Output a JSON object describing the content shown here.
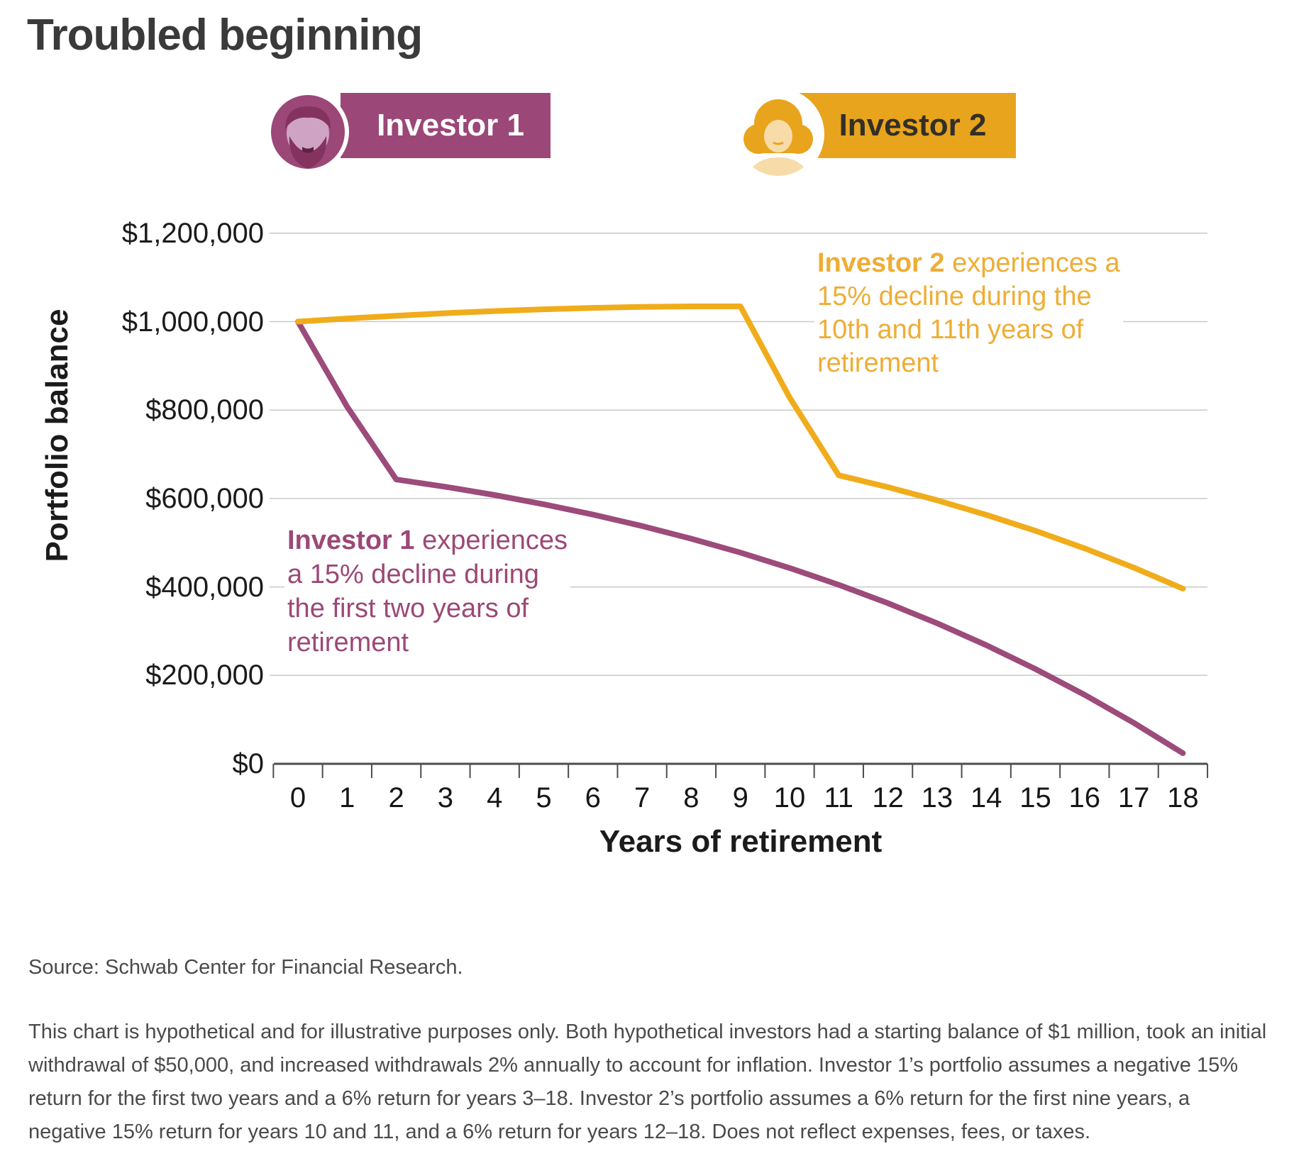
{
  "title": "Troubled beginning",
  "legend": {
    "investor1_label": "Investor 1",
    "investor2_label": "Investor 2"
  },
  "colors": {
    "purple": "#9B4778",
    "purple_line": "#9C4B7B",
    "purple_face": "#CFA3C4",
    "purple_dark": "#84335F",
    "gold": "#E8A41C",
    "gold_line": "#F0AC1A",
    "gold_face": "#F7DCA9",
    "gold_text": "#EEAD35",
    "purple_text": "#9C4877",
    "badge1_text": "#FFFFFF",
    "badge2_text": "#332F28",
    "grid": "#C9C9C9",
    "axis": "#4D4D4D"
  },
  "chart_data": {
    "type": "line",
    "title": "Troubled beginning",
    "xlabel": "Years of retirement",
    "ylabel": "Portfolio balance",
    "x": [
      0,
      1,
      2,
      3,
      4,
      5,
      6,
      7,
      8,
      9,
      10,
      11,
      12,
      13,
      14,
      15,
      16,
      17,
      18
    ],
    "series": [
      {
        "name": "Investor 1",
        "color": "#9C4B7B",
        "values": [
          1000000,
          807500,
          643025,
          626465,
          607809,
          586909,
          563607,
          537737,
          509121,
          477570,
          442884,
          404851,
          363243,
          317821,
          268329,
          214496,
          156035,
          92639,
          23985
        ]
      },
      {
        "name": "Investor 2",
        "color": "#F0AC1A",
        "values": [
          1000000,
          1007000,
          1013360,
          1019020,
          1023918,
          1027984,
          1031147,
          1033329,
          1034448,
          1034417,
          828463,
          652386,
          625631,
          595952,
          563148,
          527004,
          487294,
          443774,
          396187
        ]
      }
    ],
    "ylim": [
      0,
      1200000
    ],
    "yticks": [
      0,
      200000,
      400000,
      600000,
      800000,
      1000000,
      1200000
    ],
    "ytick_labels": [
      "$0",
      "$200,000",
      "$400,000",
      "$600,000",
      "$800,000",
      "$1,000,000",
      "$1,200,000"
    ],
    "grid": "horizontal",
    "legend_position": "top"
  },
  "annotations": {
    "investor1": {
      "bold": "Investor 1",
      "line1_rest": " experiences",
      "line2": "a 15% decline during",
      "line3": "the first two years of",
      "line4": "retirement"
    },
    "investor2": {
      "bold": "Investor 2",
      "line1_rest": " experiences a",
      "line2": "15% decline during the",
      "line3": "10th and 11th years of",
      "line4": "retirement"
    }
  },
  "footer": {
    "source": "Source: Schwab Center for Financial Research.",
    "disclaimer": "This chart is hypothetical and for illustrative purposes only. Both hypothetical investors had a starting balance of $1 million, took an initial withdrawal of $50,000, and increased withdrawals 2% annually to account for inflation. Investor 1’s portfolio assumes a negative 15% return for the first two years and a 6% return for years 3–18. Investor 2’s portfolio assumes a 6% return for the first nine years, a negative 15% return for years 10 and 11, and a 6% return for years 12–18. Does not reflect expenses, fees, or taxes."
  }
}
